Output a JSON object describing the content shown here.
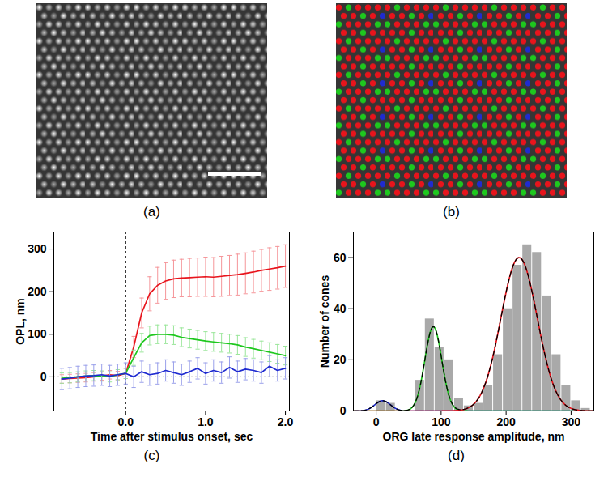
{
  "chart_data": [
    {
      "type": "image",
      "label": "(a)",
      "scale_bar": true
    },
    {
      "type": "image",
      "label": "(b)",
      "colors": [
        "#e8141c",
        "#1ec81e",
        "#1f2bd0"
      ]
    },
    {
      "type": "line",
      "label": "(c)",
      "x_label": "Time after stimulus onset, sec",
      "y_label": "OPL, nm",
      "x": [
        -0.8,
        -0.7,
        -0.6,
        -0.5,
        -0.4,
        -0.3,
        -0.2,
        -0.1,
        0,
        0.1,
        0.2,
        0.3,
        0.4,
        0.5,
        0.6,
        0.7,
        0.8,
        0.9,
        1.0,
        1.1,
        1.2,
        1.3,
        1.4,
        1.5,
        1.6,
        1.7,
        1.8,
        1.9,
        2.0
      ],
      "series": [
        {
          "color": "#e8141c",
          "values": [
            -5,
            -4,
            -3,
            -2,
            0,
            2,
            5,
            3,
            8,
            70,
            150,
            195,
            215,
            225,
            230,
            232,
            233,
            234,
            235,
            234,
            236,
            238,
            240,
            243,
            246,
            250,
            253,
            256,
            260
          ],
          "errors": [
            10,
            10,
            10,
            10,
            10,
            10,
            10,
            10,
            12,
            25,
            35,
            40,
            42,
            43,
            44,
            44,
            45,
            45,
            46,
            46,
            47,
            47,
            48,
            48,
            49,
            49,
            50,
            50,
            50
          ]
        },
        {
          "color": "#1ec81e",
          "values": [
            -3,
            -2,
            0,
            2,
            3,
            2,
            0,
            5,
            8,
            45,
            80,
            97,
            100,
            100,
            98,
            93,
            90,
            87,
            84,
            82,
            80,
            78,
            75,
            70,
            66,
            62,
            58,
            54,
            50
          ],
          "errors": [
            12,
            12,
            12,
            12,
            12,
            12,
            12,
            12,
            12,
            18,
            22,
            22,
            22,
            22,
            22,
            22,
            22,
            22,
            22,
            22,
            22,
            22,
            22,
            22,
            22,
            22,
            22,
            22,
            22
          ]
        },
        {
          "color": "#1f2bd0",
          "values": [
            -5,
            -3,
            0,
            2,
            3,
            5,
            2,
            5,
            8,
            0,
            12,
            5,
            8,
            15,
            10,
            5,
            12,
            20,
            8,
            15,
            10,
            22,
            12,
            18,
            15,
            10,
            25,
            15,
            20
          ],
          "errors": [
            25,
            25,
            25,
            25,
            25,
            25,
            25,
            25,
            25,
            25,
            25,
            25,
            25,
            25,
            25,
            25,
            25,
            25,
            25,
            25,
            25,
            25,
            25,
            25,
            25,
            25,
            25,
            25,
            25
          ]
        }
      ],
      "xlim": [
        -0.9,
        2.05
      ],
      "xticks": [
        {
          "value": 0,
          "label": "0.0"
        },
        {
          "value": 1,
          "label": "1.0"
        },
        {
          "value": 2,
          "label": "2.0"
        }
      ],
      "ylim": [
        -80,
        340
      ],
      "yticks": [
        0,
        100,
        200,
        300
      ],
      "x_line": 0,
      "y_line": 0
    },
    {
      "type": "histogram",
      "label": "(d)",
      "x_label": "ORG late response amplitude, nm",
      "y_label": "Number of cones",
      "bins": [
        -15,
        0,
        15,
        30,
        45,
        60,
        75,
        90,
        105,
        120,
        135,
        150,
        165,
        180,
        195,
        210,
        225,
        240,
        255,
        270,
        285,
        300,
        315,
        330
      ],
      "counts": [
        0,
        4,
        3,
        0,
        0,
        12,
        36,
        25,
        20,
        5,
        2,
        3,
        10,
        22,
        40,
        57,
        65,
        62,
        45,
        22,
        10,
        4,
        1
      ],
      "color": "#a9a9a9",
      "fits": [
        {
          "color": "#1f2bd0",
          "amplitude": 4,
          "center": 10,
          "sigma": 12
        },
        {
          "color": "#1ec81e",
          "amplitude": 33,
          "center": 88,
          "sigma": 13
        },
        {
          "color": "#e8141c",
          "amplitude": 60,
          "center": 220,
          "sigma": 28
        }
      ],
      "fit_sum": {
        "color": "#000000",
        "line_style": "dashed"
      },
      "xlim": [
        -35,
        335
      ],
      "xticks": [
        0,
        100,
        200,
        300
      ],
      "ylim": [
        0,
        70
      ],
      "yticks": [
        0,
        20,
        40,
        60
      ]
    }
  ]
}
